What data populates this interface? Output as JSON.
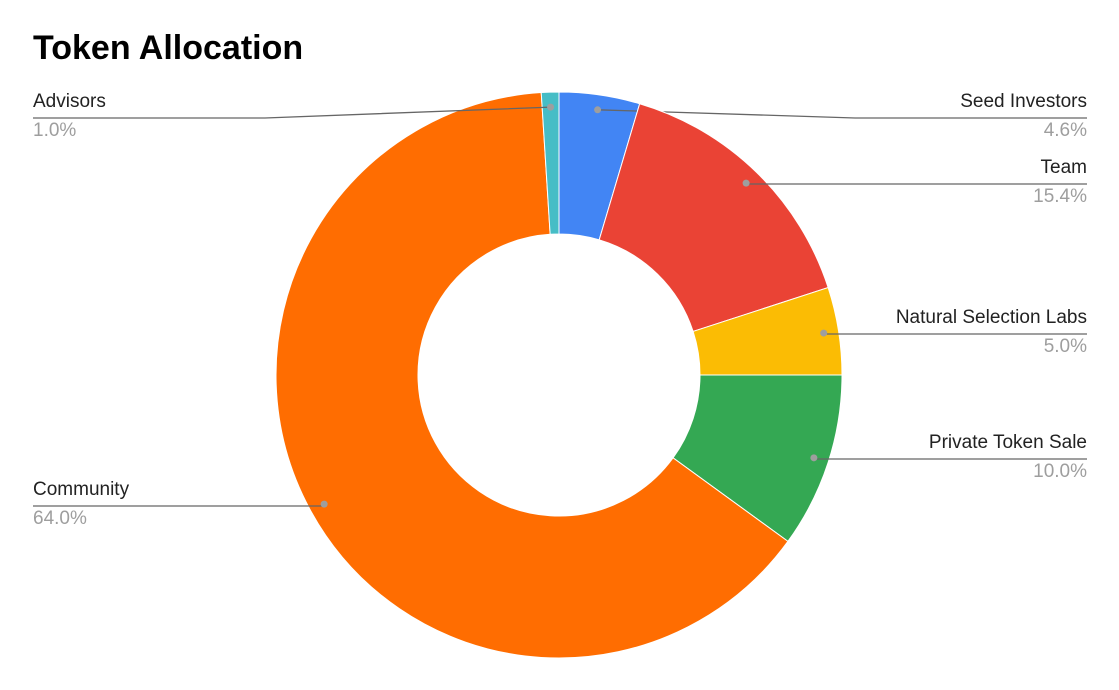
{
  "chart_data": {
    "type": "donut",
    "title": "Token Allocation",
    "categories": [
      "Seed Investors",
      "Team",
      "Natural Selection Labs",
      "Private Token Sale",
      "Community",
      "Advisors"
    ],
    "values": [
      4.6,
      15.4,
      5.0,
      10.0,
      64.0,
      1.0
    ],
    "value_labels": [
      "4.6%",
      "15.4%",
      "5.0%",
      "10.0%",
      "64.0%",
      "1.0%"
    ],
    "colors": [
      "#4285f4",
      "#ea4335",
      "#fbbc04",
      "#34a853",
      "#ff6d01",
      "#46bdc6"
    ]
  }
}
